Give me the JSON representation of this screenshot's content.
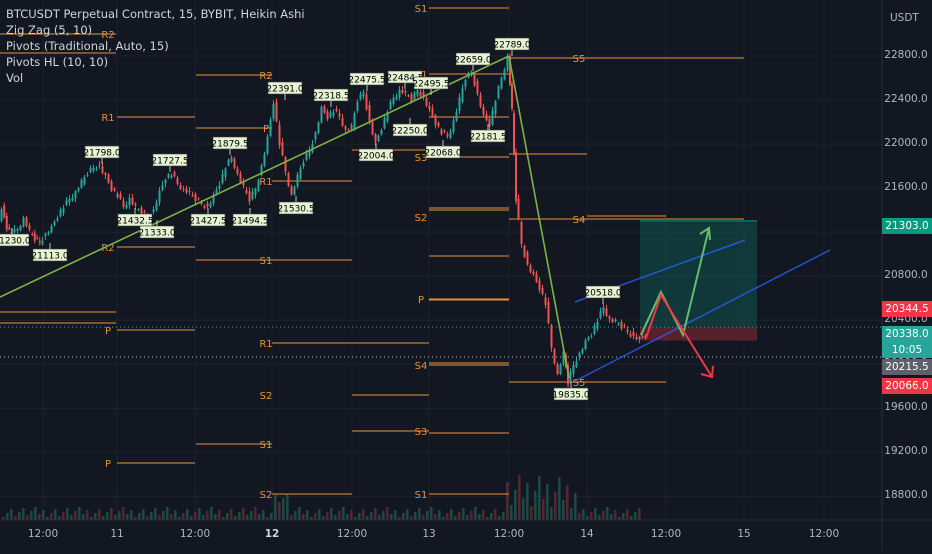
{
  "legend": {
    "title": "BTCUSDT Perpetual Contract, 15, BYBIT, Heikin Ashi",
    "indicators": [
      "Zig Zag (5, 10)",
      "Pivots (Traditional, Auto, 15)",
      "Pivots HL (10, 10)",
      "Vol"
    ]
  },
  "chart_data": {
    "type": "candlestick",
    "title": "BTCUSDT Perpetual Contract, 15, BYBIT, Heikin Ashi",
    "y_unit": "USDT",
    "ylim": [
      18600,
      23000
    ],
    "y_ticks": [
      18800,
      19200,
      19600,
      20000,
      20400,
      20800,
      21200,
      21600,
      22000,
      22400,
      22800
    ],
    "x_ticks": [
      "12:00",
      "11",
      "12:00",
      "12",
      "12:00",
      "13",
      "12:00",
      "14",
      "12:00",
      "15",
      "12:00"
    ],
    "price_path": [
      [
        0,
        21300
      ],
      [
        3,
        21420
      ],
      [
        8,
        21250
      ],
      [
        13,
        21180
      ],
      [
        19,
        21230
      ],
      [
        25,
        21320
      ],
      [
        31,
        21200
      ],
      [
        36,
        21140
      ],
      [
        41,
        21113
      ],
      [
        47,
        21180
      ],
      [
        53,
        21240
      ],
      [
        59,
        21350
      ],
      [
        65,
        21430
      ],
      [
        71,
        21500
      ],
      [
        77,
        21560
      ],
      [
        83,
        21650
      ],
      [
        89,
        21740
      ],
      [
        95,
        21790
      ],
      [
        101,
        21798
      ],
      [
        107,
        21700
      ],
      [
        113,
        21600
      ],
      [
        119,
        21530
      ],
      [
        125,
        21432
      ],
      [
        131,
        21500
      ],
      [
        137,
        21420
      ],
      [
        143,
        21380
      ],
      [
        149,
        21333
      ],
      [
        155,
        21400
      ],
      [
        161,
        21560
      ],
      [
        167,
        21700
      ],
      [
        173,
        21727
      ],
      [
        179,
        21640
      ],
      [
        185,
        21580
      ],
      [
        191,
        21550
      ],
      [
        197,
        21500
      ],
      [
        203,
        21460
      ],
      [
        209,
        21427
      ],
      [
        215,
        21520
      ],
      [
        221,
        21650
      ],
      [
        227,
        21790
      ],
      [
        233,
        21879
      ],
      [
        239,
        21720
      ],
      [
        245,
        21600
      ],
      [
        251,
        21494
      ],
      [
        257,
        21600
      ],
      [
        263,
        21800
      ],
      [
        269,
        22050
      ],
      [
        275,
        22391
      ],
      [
        281,
        22000
      ],
      [
        287,
        21750
      ],
      [
        293,
        21530
      ],
      [
        299,
        21700
      ],
      [
        305,
        21850
      ],
      [
        311,
        21950
      ],
      [
        317,
        22100
      ],
      [
        323,
        22318
      ],
      [
        329,
        22250
      ],
      [
        335,
        22300
      ],
      [
        341,
        22250
      ],
      [
        347,
        22120
      ],
      [
        353,
        22150
      ],
      [
        359,
        22400
      ],
      [
        365,
        22475
      ],
      [
        371,
        22200
      ],
      [
        377,
        22004
      ],
      [
        383,
        22150
      ],
      [
        389,
        22300
      ],
      [
        395,
        22420
      ],
      [
        401,
        22480
      ],
      [
        407,
        22460
      ],
      [
        413,
        22400
      ],
      [
        419,
        22495
      ],
      [
        425,
        22420
      ],
      [
        431,
        22300
      ],
      [
        437,
        22200
      ],
      [
        443,
        22100
      ],
      [
        449,
        22068
      ],
      [
        455,
        22200
      ],
      [
        461,
        22400
      ],
      [
        467,
        22600
      ],
      [
        473,
        22659
      ],
      [
        479,
        22450
      ],
      [
        485,
        22250
      ],
      [
        491,
        22181
      ],
      [
        497,
        22400
      ],
      [
        503,
        22600
      ],
      [
        509,
        22789
      ],
      [
        513,
        22300
      ],
      [
        517,
        21500
      ],
      [
        523,
        21100
      ],
      [
        529,
        20900
      ],
      [
        535,
        20800
      ],
      [
        541,
        20700
      ],
      [
        547,
        20550
      ],
      [
        553,
        20150
      ],
      [
        559,
        19900
      ],
      [
        565,
        20100
      ],
      [
        569,
        19835
      ],
      [
        575,
        20000
      ],
      [
        581,
        20100
      ],
      [
        587,
        20200
      ],
      [
        593,
        20280
      ],
      [
        599,
        20400
      ],
      [
        605,
        20518
      ],
      [
        611,
        20400
      ],
      [
        617,
        20380
      ],
      [
        623,
        20340
      ],
      [
        629,
        20300
      ],
      [
        635,
        20250
      ],
      [
        641,
        20230
      ],
      [
        647,
        20260
      ]
    ],
    "swing_labels": [
      {
        "price": 21230.0,
        "kind": "low"
      },
      {
        "price": 21113.0,
        "kind": "low"
      },
      {
        "price": 21798.0,
        "kind": "high"
      },
      {
        "price": 21432.5,
        "kind": "low"
      },
      {
        "price": 21333.0,
        "kind": "low"
      },
      {
        "price": 21727.5,
        "kind": "high"
      },
      {
        "price": 21427.5,
        "kind": "low"
      },
      {
        "price": 21879.5,
        "kind": "high"
      },
      {
        "price": 21494.5,
        "kind": "low"
      },
      {
        "price": 22391.0,
        "kind": "high"
      },
      {
        "price": 21530.5,
        "kind": "low"
      },
      {
        "price": 22318.5,
        "kind": "high"
      },
      {
        "price": 22475.5,
        "kind": "high"
      },
      {
        "price": 22004.0,
        "kind": "low"
      },
      {
        "price": 22484.5,
        "kind": "high"
      },
      {
        "price": 22495.5,
        "kind": "high"
      },
      {
        "price": 22250.0,
        "kind": "low"
      },
      {
        "price": 22068.0,
        "kind": "low"
      },
      {
        "price": 22659.0,
        "kind": "high"
      },
      {
        "price": 22181.5,
        "kind": "low"
      },
      {
        "price": 22789.0,
        "kind": "high"
      },
      {
        "price": 20518.0,
        "kind": "high"
      },
      {
        "price": 19835.0,
        "kind": "low"
      }
    ],
    "pivot_levels": [
      {
        "label": "R2",
        "price": 22660
      },
      {
        "label": "R1",
        "price": 22228
      },
      {
        "label": "R2",
        "price": 23000
      },
      {
        "label": "P",
        "price": 21940
      },
      {
        "label": "R1",
        "price": 22210
      },
      {
        "label": "R2",
        "price": 22760
      },
      {
        "label": "S1",
        "price": 21340
      },
      {
        "label": "P",
        "price": 21930
      },
      {
        "label": "R1",
        "price": 22760
      },
      {
        "label": "S2",
        "price": 20090
      },
      {
        "label": "S1",
        "price": 20900
      },
      {
        "label": "P",
        "price": 21980
      },
      {
        "label": "S2",
        "price": 20240
      },
      {
        "label": "S1",
        "price": 21220
      },
      {
        "label": "R1",
        "price": 22778
      },
      {
        "label": "S3",
        "price": 19830
      },
      {
        "label": "S2",
        "price": 20390
      },
      {
        "label": "P",
        "price": 21303
      },
      {
        "label": "S4",
        "price": 19350
      },
      {
        "label": "S3",
        "price": 19970
      },
      {
        "label": "S1",
        "price": 19870
      },
      {
        "label": "S5",
        "price": 18870
      },
      {
        "label": "S4",
        "price": 19610
      },
      {
        "label": "S5",
        "price": 19040
      }
    ],
    "long_position": {
      "entry": 20338.0,
      "target": 21303.0,
      "stop": 20215.5
    },
    "price_tags": [
      {
        "value": "21303.0",
        "color": "#089981"
      },
      {
        "value": "20344.5",
        "color": "#f23645"
      },
      {
        "value": "20338.0",
        "color": "#26a69a"
      },
      {
        "value": "10:05",
        "color": "#26a69a"
      },
      {
        "value": "20215.5",
        "color": "#5d606b"
      },
      {
        "value": "20066.0",
        "color": "#f23645"
      }
    ]
  }
}
